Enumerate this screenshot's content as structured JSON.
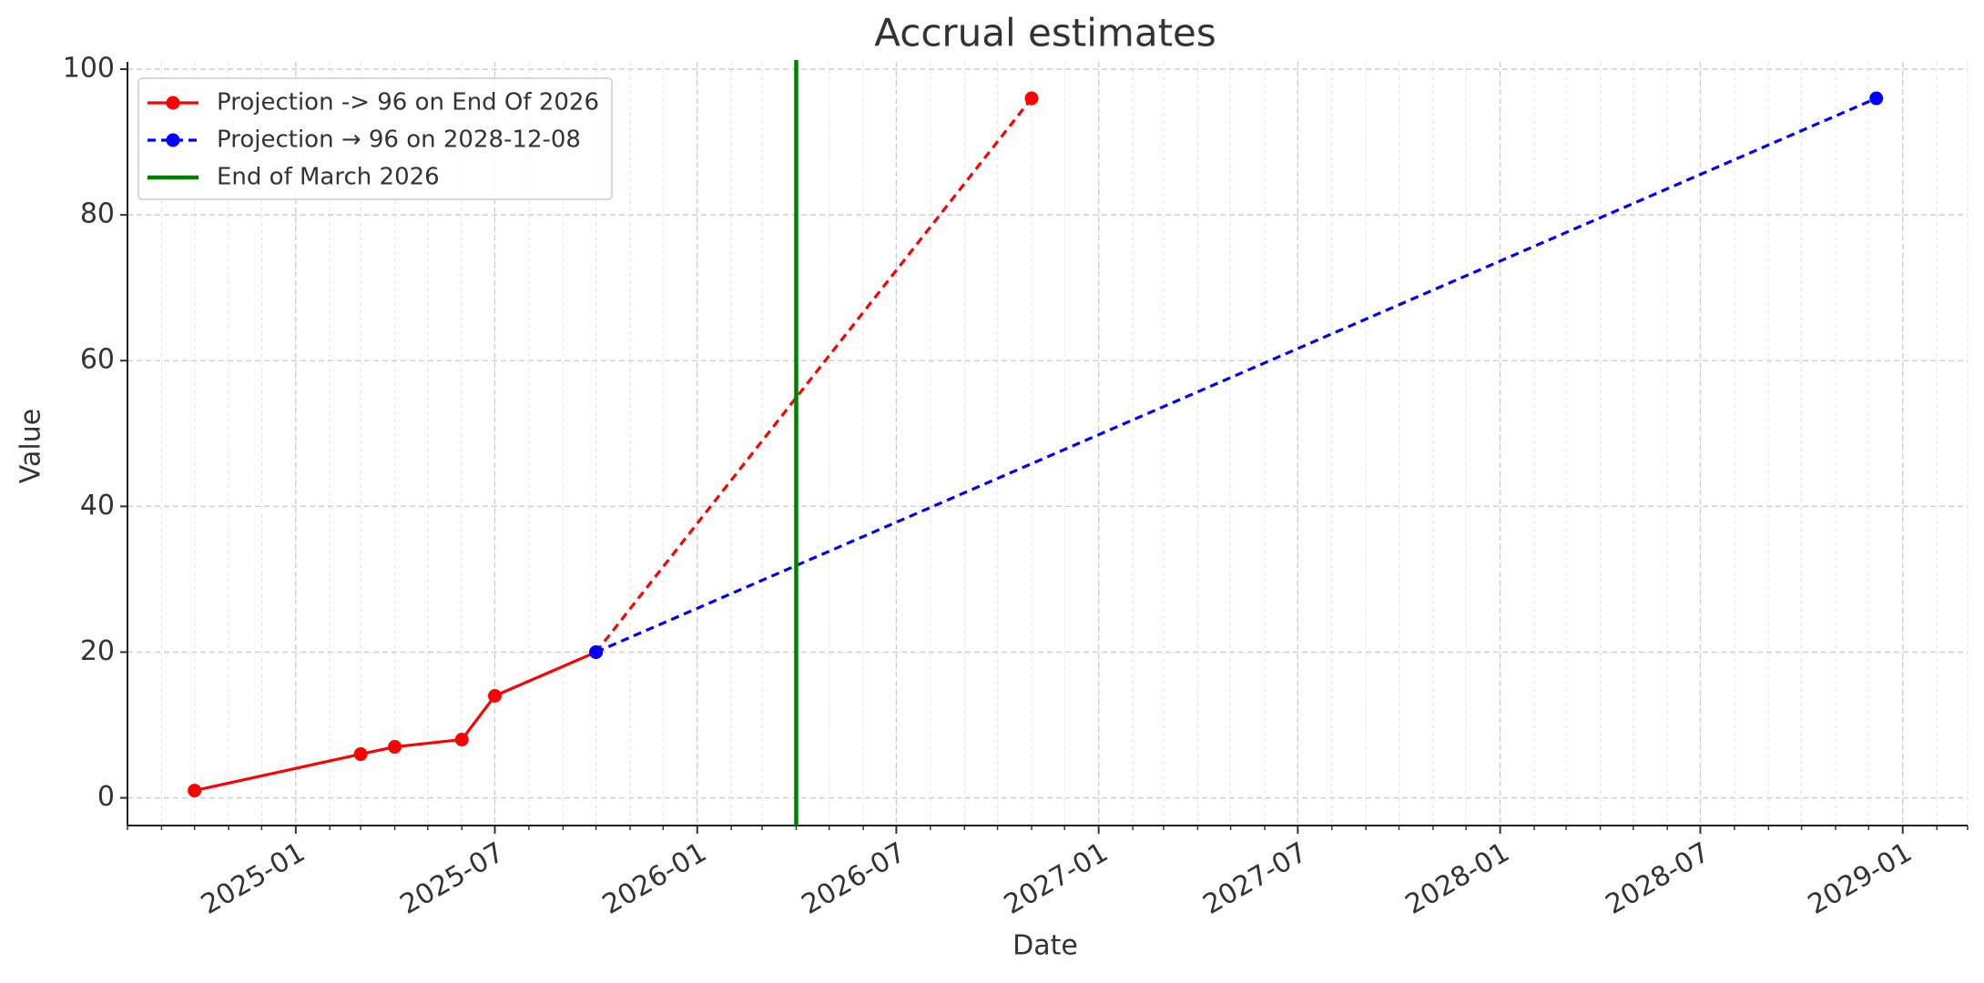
{
  "chart_data": {
    "type": "line",
    "title": "Accrual estimates",
    "x_label": "Date",
    "y_label": "Value",
    "series": [
      {
        "name": "Projection -> 96 on End Of 2026",
        "color": "red",
        "linestyle": "solid",
        "dashed_last_segment": true,
        "x": [
          "2024-10",
          "2025-03",
          "2025-04",
          "2025-06",
          "2025-07",
          "2025-10",
          "2026-11"
        ],
        "values": [
          1,
          6,
          7,
          8,
          14,
          20,
          96
        ]
      },
      {
        "name": "Projection → 96 on 2028-12-08",
        "color": "blue",
        "linestyle": "dashed",
        "x": [
          "2025-10",
          "2028-12-08"
        ],
        "values": [
          20,
          96
        ]
      }
    ],
    "vlines": [
      {
        "name": "End of March 2026",
        "color": "green",
        "x": "2026-04"
      }
    ],
    "xlim": [
      "2024-08",
      "2029-03"
    ],
    "xticks": [
      "2025-01",
      "2025-07",
      "2026-01",
      "2026-07",
      "2027-01",
      "2027-07",
      "2028-01",
      "2028-07",
      "2029-01"
    ],
    "ylim": [
      -3.8,
      100
    ],
    "yticks": [
      0,
      20,
      40,
      60,
      80,
      100
    ],
    "grid": true,
    "legend": "upper left"
  }
}
